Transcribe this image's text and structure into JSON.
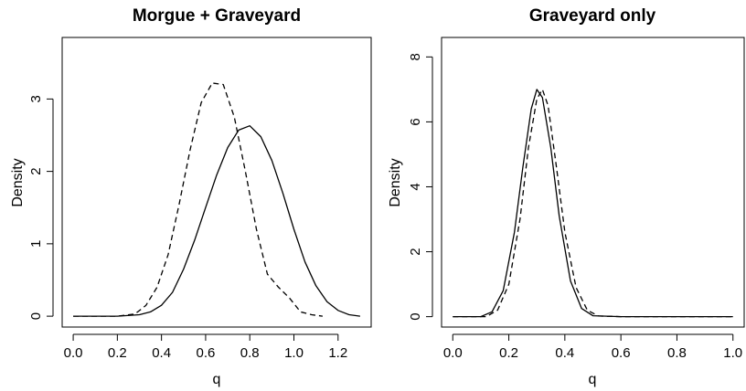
{
  "chart_data": [
    {
      "type": "line",
      "title": "Morgue + Graveyard",
      "xlabel": "q",
      "ylabel": "Density",
      "xlim": [
        -0.05,
        1.35
      ],
      "ylim": [
        -0.15,
        3.85
      ],
      "xticks": [
        0.0,
        0.2,
        0.4,
        0.6,
        0.8,
        1.0,
        1.2
      ],
      "xtick_labels": [
        "0.0",
        "0.2",
        "0.4",
        "0.6",
        "0.8",
        "1.0",
        "1.2"
      ],
      "yticks": [
        0,
        1,
        2,
        3
      ],
      "ytick_labels": [
        "0",
        "1",
        "2",
        "3"
      ],
      "grid": false,
      "series": [
        {
          "style": "solid",
          "x": [
            0.0,
            0.1,
            0.2,
            0.3,
            0.35,
            0.4,
            0.45,
            0.5,
            0.55,
            0.6,
            0.65,
            0.7,
            0.75,
            0.8,
            0.85,
            0.9,
            0.95,
            1.0,
            1.05,
            1.1,
            1.15,
            1.2,
            1.25,
            1.3
          ],
          "y": [
            0.0,
            0.0,
            0.0,
            0.02,
            0.06,
            0.15,
            0.33,
            0.65,
            1.05,
            1.5,
            1.95,
            2.33,
            2.57,
            2.63,
            2.48,
            2.15,
            1.7,
            1.2,
            0.75,
            0.42,
            0.2,
            0.08,
            0.02,
            0.0
          ]
        },
        {
          "style": "dashed",
          "x": [
            0.0,
            0.2,
            0.28,
            0.33,
            0.38,
            0.43,
            0.48,
            0.53,
            0.58,
            0.63,
            0.68,
            0.73,
            0.78,
            0.83,
            0.88,
            0.93,
            0.98,
            1.03,
            1.08,
            1.13
          ],
          "y": [
            0.0,
            0.0,
            0.03,
            0.15,
            0.4,
            0.85,
            1.55,
            2.3,
            2.95,
            3.22,
            3.2,
            2.75,
            2.0,
            1.2,
            0.58,
            0.4,
            0.25,
            0.06,
            0.02,
            0.0
          ]
        }
      ]
    },
    {
      "type": "line",
      "title": "Graveyard only",
      "xlabel": "q",
      "ylabel": "Density",
      "xlim": [
        -0.04,
        1.04
      ],
      "ylim": [
        -0.32,
        8.6
      ],
      "xticks": [
        0.0,
        0.2,
        0.4,
        0.6,
        0.8,
        1.0
      ],
      "xtick_labels": [
        "0.0",
        "0.2",
        "0.4",
        "0.6",
        "0.8",
        "1.0"
      ],
      "yticks": [
        0,
        2,
        4,
        6,
        8
      ],
      "ytick_labels": [
        "0",
        "2",
        "4",
        "6",
        "8"
      ],
      "grid": false,
      "series": [
        {
          "style": "solid",
          "x": [
            0.0,
            0.1,
            0.14,
            0.18,
            0.22,
            0.25,
            0.28,
            0.3,
            0.32,
            0.35,
            0.38,
            0.42,
            0.46,
            0.5,
            0.6,
            1.0
          ],
          "y": [
            0.0,
            0.0,
            0.15,
            0.8,
            2.6,
            4.6,
            6.4,
            7.0,
            6.75,
            5.2,
            3.1,
            1.1,
            0.25,
            0.03,
            0.0,
            0.0
          ]
        },
        {
          "style": "dashed",
          "x": [
            0.0,
            0.12,
            0.16,
            0.2,
            0.24,
            0.27,
            0.3,
            0.32,
            0.34,
            0.37,
            0.4,
            0.44,
            0.48,
            0.52,
            0.6,
            1.0
          ],
          "y": [
            0.0,
            0.0,
            0.2,
            1.0,
            3.0,
            5.2,
            6.7,
            7.0,
            6.5,
            4.6,
            2.6,
            0.9,
            0.2,
            0.02,
            0.0,
            0.0
          ]
        }
      ]
    }
  ]
}
